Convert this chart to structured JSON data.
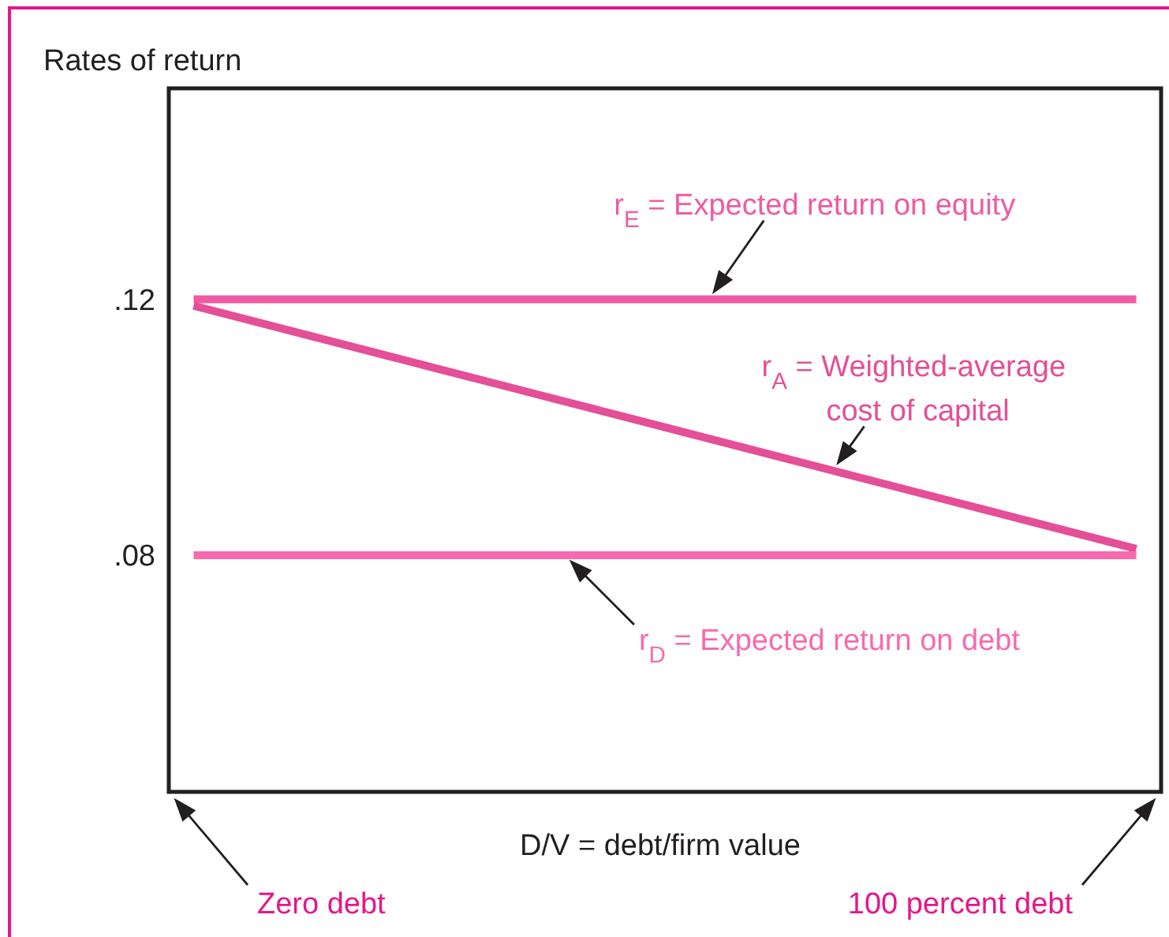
{
  "chart_data": {
    "type": "line",
    "ylabel": "Rates of return",
    "xlabel": "D/V = debt/firm value",
    "categories": [
      null,
      null,
      null,
      null,
      null,
      null,
      null,
      null,
      null,
      null,
      null,
      null,
      null,
      null,
      null,
      null,
      null,
      null,
      null,
      null
    ],
    "series": [
      {
        "name": "r$_{E}$ = Expected return on equity",
        "color": "#ef5ba1",
        "values": [
          0.12,
          0.12,
          0.12,
          0.12,
          0.12,
          0.12,
          0.12,
          0.12,
          0.12,
          0.12,
          0.12,
          0.12,
          0.12,
          0.12,
          0.12,
          0.12,
          0.12,
          0.12,
          0.12,
          0.12
        ]
      },
      {
        "name": "r$_{A}$ = Weighted-average cost of capital",
        "color": "#e44f97",
        "values": [
          0.119,
          0.117,
          0.115,
          0.113,
          0.111,
          0.109,
          0.107,
          0.105,
          0.103,
          0.101,
          0.099,
          0.097,
          0.095,
          0.093,
          0.091,
          0.089,
          0.087,
          0.085,
          0.083,
          0.081
        ]
      },
      {
        "name": "r$_{D}$ = Expected return on debt",
        "color": "#f76aad",
        "values": [
          0.08,
          0.08,
          0.08,
          0.08,
          0.08,
          0.08,
          0.08,
          0.08,
          0.08,
          0.08,
          0.08,
          0.08,
          0.08,
          0.08,
          0.08,
          0.08,
          0.08,
          0.08,
          0.08,
          0.08
        ]
      }
    ],
    "ylim": [
      0.043,
      0.153
    ],
    "yticks": [
      {
        "value": 0.08,
        "label": ".08"
      },
      {
        "value": 0.12,
        "label": ".12"
      }
    ],
    "tick_labels": "y",
    "annotations": [
      "Zero debt",
      "100 percent debt"
    ]
  }
}
